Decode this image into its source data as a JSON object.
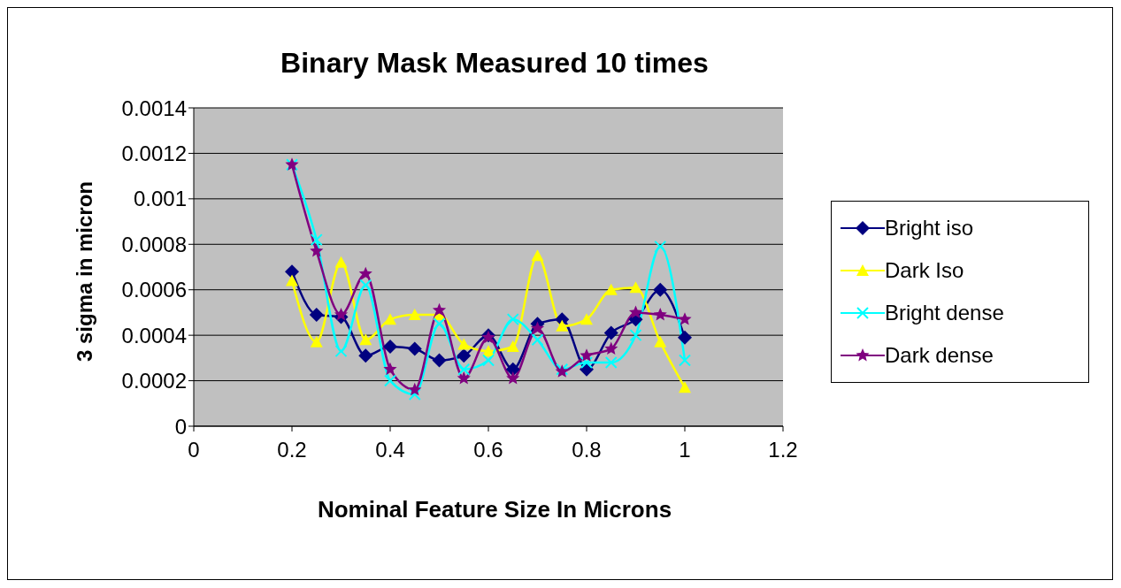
{
  "chart_data": {
    "type": "line",
    "title": "Binary Mask Measured 10 times",
    "xlabel": "Nominal Feature Size In Microns",
    "ylabel": "3 sigma in micron",
    "x": [
      0.2,
      0.25,
      0.3,
      0.35,
      0.4,
      0.45,
      0.5,
      0.55,
      0.6,
      0.65,
      0.7,
      0.75,
      0.8,
      0.85,
      0.9,
      0.95,
      1.0
    ],
    "series": [
      {
        "name": "Bright iso",
        "color": "#000080",
        "marker": "diamond",
        "values": [
          0.00068,
          0.00049,
          0.00048,
          0.00031,
          0.00035,
          0.00034,
          0.00029,
          0.00031,
          0.0004,
          0.00025,
          0.00045,
          0.00047,
          0.00025,
          0.00041,
          0.00047,
          0.0006,
          0.00039
        ]
      },
      {
        "name": "Dark Iso",
        "color": "#ffff00",
        "marker": "triangle",
        "values": [
          0.00064,
          0.00037,
          0.00072,
          0.00038,
          0.00047,
          0.00049,
          0.00049,
          0.00036,
          0.00033,
          0.00035,
          0.00075,
          0.00044,
          0.00047,
          0.0006,
          0.00061,
          0.00037,
          0.00017
        ]
      },
      {
        "name": "Bright dense",
        "color": "#00ffff",
        "marker": "cross",
        "values": [
          0.00115,
          0.00082,
          0.00033,
          0.00062,
          0.0002,
          0.00014,
          0.00045,
          0.00025,
          0.00029,
          0.00047,
          0.00038,
          0.00025,
          0.00028,
          0.00028,
          0.0004,
          0.00079,
          0.00029
        ]
      },
      {
        "name": "Dark dense",
        "color": "#800080",
        "marker": "star",
        "values": [
          0.00115,
          0.00077,
          0.00049,
          0.00067,
          0.00025,
          0.00016,
          0.00051,
          0.00021,
          0.00039,
          0.00021,
          0.00043,
          0.00024,
          0.00031,
          0.00034,
          0.0005,
          0.00049,
          0.00047
        ]
      }
    ],
    "xlim": [
      0,
      1.2
    ],
    "xticks": [
      0,
      0.2,
      0.4,
      0.6,
      0.8,
      1,
      1.2
    ],
    "ylim": [
      0,
      0.0014
    ],
    "yticks": [
      0,
      0.0002,
      0.0004,
      0.0006,
      0.0008,
      0.001,
      0.0012,
      0.0014
    ],
    "grid": "y",
    "legend": "right",
    "line_style": "solid"
  }
}
